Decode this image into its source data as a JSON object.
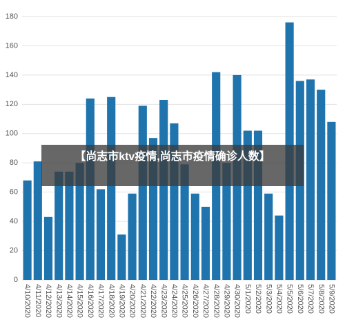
{
  "chart_data": {
    "type": "bar",
    "categories": [
      "4/10/2020",
      "4/11/2020",
      "4/12/2020",
      "4/13/2020",
      "4/14/2020",
      "4/15/2020",
      "4/16/2020",
      "4/17/2020",
      "4/18/2020",
      "4/19/2020",
      "4/20/2020",
      "4/21/2020",
      "4/22/2020",
      "4/23/2020",
      "4/24/2020",
      "4/25/2020",
      "4/26/2020",
      "4/27/2020",
      "4/28/2020",
      "4/29/2020",
      "4/30/2020",
      "5/1/2020",
      "5/2/2020",
      "5/3/2020",
      "5/4/2020",
      "5/5/2020",
      "5/6/2020",
      "5/7/2020",
      "5/8/2020",
      "5/9/2020"
    ],
    "values": [
      68,
      81,
      43,
      74,
      74,
      80,
      124,
      62,
      125,
      31,
      59,
      119,
      97,
      123,
      107,
      79,
      59,
      50,
      142,
      80,
      140,
      102,
      102,
      59,
      44,
      176,
      136,
      137,
      130,
      108
    ],
    "color": "#1f74ad",
    "ylim": [
      0,
      180
    ],
    "yticks": [
      0,
      20,
      40,
      60,
      80,
      100,
      120,
      140,
      160,
      180
    ],
    "grid": true
  },
  "banner": {
    "text": "【尚志市ktv疫情,尚志市疫情确诊人数】"
  }
}
